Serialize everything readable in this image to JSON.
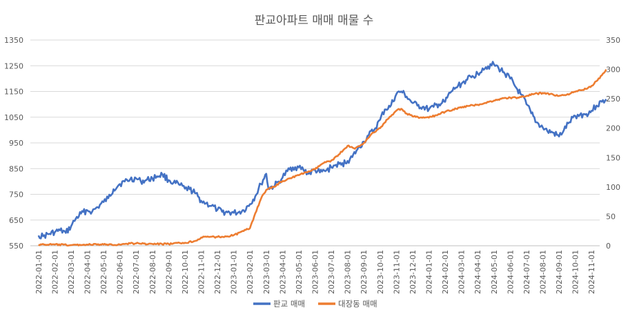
{
  "chart_data": {
    "type": "line",
    "title": "판교아파트 매매 매물 수",
    "xlabel": "",
    "ylabel": "",
    "grid": true,
    "legend_position": "bottom",
    "x_categories": [
      "2022-01-01",
      "2022-02-01",
      "2022-03-01",
      "2022-04-01",
      "2022-05-01",
      "2022-06-01",
      "2022-07-01",
      "2022-08-01",
      "2022-09-01",
      "2022-10-01",
      "2022-11-01",
      "2022-12-01",
      "2023-01-01",
      "2023-02-01",
      "2023-03-01",
      "2023-04-01",
      "2023-05-01",
      "2023-06-01",
      "2023-07-01",
      "2023-08-01",
      "2023-09-01",
      "2023-10-01",
      "2023-11-01",
      "2023-12-01",
      "2024-01-01",
      "2024-02-01",
      "2024-03-01",
      "2024-04-01",
      "2024-05-01",
      "2024-06-01",
      "2024-07-01",
      "2024-08-01",
      "2024-09-01",
      "2024-10-01",
      "2024-11-01"
    ],
    "y_left": {
      "min": 550,
      "max": 1350,
      "ticks": [
        "550",
        "650",
        "750",
        "850",
        "950",
        "1050",
        "1150",
        "1250",
        "1350"
      ]
    },
    "y_right": {
      "min": 0,
      "max": 350,
      "ticks": [
        "0",
        "50",
        "100",
        "150",
        "200",
        "250",
        "300",
        "350"
      ]
    },
    "series": [
      {
        "name": "판교 매매",
        "axis": "left",
        "color": "#4472C4",
        "points": [
          [
            "2022-01-01",
            590
          ],
          [
            "2022-01-10",
            587
          ],
          [
            "2022-01-20",
            595
          ],
          [
            "2022-02-01",
            603
          ],
          [
            "2022-02-10",
            610
          ],
          [
            "2022-02-20",
            600
          ],
          [
            "2022-03-01",
            625
          ],
          [
            "2022-03-10",
            655
          ],
          [
            "2022-03-20",
            675
          ],
          [
            "2022-04-01",
            688
          ],
          [
            "2022-04-10",
            683
          ],
          [
            "2022-04-20",
            700
          ],
          [
            "2022-05-01",
            720
          ],
          [
            "2022-05-10",
            735
          ],
          [
            "2022-05-20",
            770
          ],
          [
            "2022-06-01",
            790
          ],
          [
            "2022-06-10",
            800
          ],
          [
            "2022-06-20",
            808
          ],
          [
            "2022-07-01",
            812
          ],
          [
            "2022-07-10",
            800
          ],
          [
            "2022-07-20",
            805
          ],
          [
            "2022-08-01",
            812
          ],
          [
            "2022-08-10",
            820
          ],
          [
            "2022-08-20",
            828
          ],
          [
            "2022-09-01",
            805
          ],
          [
            "2022-09-10",
            795
          ],
          [
            "2022-09-20",
            788
          ],
          [
            "2022-10-01",
            772
          ],
          [
            "2022-10-10",
            770
          ],
          [
            "2022-10-20",
            755
          ],
          [
            "2022-11-01",
            725
          ],
          [
            "2022-11-10",
            715
          ],
          [
            "2022-11-20",
            705
          ],
          [
            "2022-12-01",
            690
          ],
          [
            "2022-12-10",
            682
          ],
          [
            "2022-12-20",
            680
          ],
          [
            "2023-01-01",
            678
          ],
          [
            "2023-01-10",
            680
          ],
          [
            "2023-01-20",
            688
          ],
          [
            "2023-02-01",
            712
          ],
          [
            "2023-02-10",
            742
          ],
          [
            "2023-02-20",
            790
          ],
          [
            "2023-03-01",
            830
          ],
          [
            "2023-03-05",
            775
          ],
          [
            "2023-03-15",
            780
          ],
          [
            "2023-03-25",
            800
          ],
          [
            "2023-04-01",
            815
          ],
          [
            "2023-04-10",
            840
          ],
          [
            "2023-04-20",
            855
          ],
          [
            "2023-05-01",
            855
          ],
          [
            "2023-05-10",
            845
          ],
          [
            "2023-05-20",
            830
          ],
          [
            "2023-06-01",
            845
          ],
          [
            "2023-06-10",
            835
          ],
          [
            "2023-06-20",
            840
          ],
          [
            "2023-07-01",
            855
          ],
          [
            "2023-07-10",
            865
          ],
          [
            "2023-07-20",
            865
          ],
          [
            "2023-08-01",
            880
          ],
          [
            "2023-08-10",
            895
          ],
          [
            "2023-08-20",
            925
          ],
          [
            "2023-09-01",
            955
          ],
          [
            "2023-09-10",
            980
          ],
          [
            "2023-09-20",
            1000
          ],
          [
            "2023-10-01",
            1040
          ],
          [
            "2023-10-10",
            1080
          ],
          [
            "2023-10-20",
            1090
          ],
          [
            "2023-11-01",
            1140
          ],
          [
            "2023-11-10",
            1150
          ],
          [
            "2023-11-20",
            1130
          ],
          [
            "2023-12-01",
            1105
          ],
          [
            "2023-12-10",
            1095
          ],
          [
            "2023-12-20",
            1090
          ],
          [
            "2024-01-01",
            1080
          ],
          [
            "2024-01-10",
            1090
          ],
          [
            "2024-01-20",
            1100
          ],
          [
            "2024-02-01",
            1110
          ],
          [
            "2024-02-10",
            1145
          ],
          [
            "2024-02-20",
            1165
          ],
          [
            "2024-03-01",
            1180
          ],
          [
            "2024-03-10",
            1195
          ],
          [
            "2024-03-20",
            1205
          ],
          [
            "2024-04-01",
            1220
          ],
          [
            "2024-04-10",
            1240
          ],
          [
            "2024-04-20",
            1248
          ],
          [
            "2024-05-01",
            1255
          ],
          [
            "2024-05-10",
            1240
          ],
          [
            "2024-05-20",
            1225
          ],
          [
            "2024-06-01",
            1200
          ],
          [
            "2024-06-10",
            1170
          ],
          [
            "2024-06-20",
            1140
          ],
          [
            "2024-07-01",
            1100
          ],
          [
            "2024-07-10",
            1065
          ],
          [
            "2024-07-20",
            1030
          ],
          [
            "2024-08-01",
            1010
          ],
          [
            "2024-08-10",
            995
          ],
          [
            "2024-08-20",
            990
          ],
          [
            "2024-09-01",
            975
          ],
          [
            "2024-09-10",
            1000
          ],
          [
            "2024-09-20",
            1030
          ],
          [
            "2024-10-01",
            1055
          ],
          [
            "2024-10-10",
            1060
          ],
          [
            "2024-10-20",
            1060
          ],
          [
            "2024-11-01",
            1075
          ],
          [
            "2024-11-10",
            1095
          ],
          [
            "2024-11-20",
            1110
          ],
          [
            "2024-11-28",
            1120
          ]
        ]
      },
      {
        "name": "대장동 매매",
        "axis": "right",
        "color": "#ED7D31",
        "points": [
          [
            "2022-01-01",
            2
          ],
          [
            "2022-02-01",
            2
          ],
          [
            "2022-03-01",
            1
          ],
          [
            "2022-04-01",
            2
          ],
          [
            "2022-05-01",
            2
          ],
          [
            "2022-06-01",
            2
          ],
          [
            "2022-06-20",
            4
          ],
          [
            "2022-07-01",
            4
          ],
          [
            "2022-08-01",
            3
          ],
          [
            "2022-09-01",
            3
          ],
          [
            "2022-10-01",
            5
          ],
          [
            "2022-10-20",
            8
          ],
          [
            "2022-11-01",
            14
          ],
          [
            "2022-11-15",
            15
          ],
          [
            "2022-12-01",
            15
          ],
          [
            "2022-12-20",
            16
          ],
          [
            "2023-01-01",
            18
          ],
          [
            "2023-01-20",
            25
          ],
          [
            "2023-02-01",
            30
          ],
          [
            "2023-02-10",
            55
          ],
          [
            "2023-02-20",
            80
          ],
          [
            "2023-03-01",
            95
          ],
          [
            "2023-03-15",
            100
          ],
          [
            "2023-04-01",
            110
          ],
          [
            "2023-04-15",
            115
          ],
          [
            "2023-05-01",
            120
          ],
          [
            "2023-05-15",
            125
          ],
          [
            "2023-06-01",
            130
          ],
          [
            "2023-06-15",
            140
          ],
          [
            "2023-07-01",
            145
          ],
          [
            "2023-07-15",
            155
          ],
          [
            "2023-08-01",
            170
          ],
          [
            "2023-08-15",
            165
          ],
          [
            "2023-09-01",
            175
          ],
          [
            "2023-09-15",
            190
          ],
          [
            "2023-10-01",
            200
          ],
          [
            "2023-10-15",
            215
          ],
          [
            "2023-11-01",
            230
          ],
          [
            "2023-11-10",
            233
          ],
          [
            "2023-11-20",
            225
          ],
          [
            "2023-12-01",
            220
          ],
          [
            "2023-12-15",
            218
          ],
          [
            "2024-01-01",
            218
          ],
          [
            "2024-01-15",
            222
          ],
          [
            "2024-02-01",
            228
          ],
          [
            "2024-02-15",
            232
          ],
          [
            "2024-03-01",
            235
          ],
          [
            "2024-03-15",
            238
          ],
          [
            "2024-04-01",
            240
          ],
          [
            "2024-04-15",
            243
          ],
          [
            "2024-05-01",
            247
          ],
          [
            "2024-05-15",
            250
          ],
          [
            "2024-06-01",
            252
          ],
          [
            "2024-06-15",
            252
          ],
          [
            "2024-07-01",
            255
          ],
          [
            "2024-07-15",
            258
          ],
          [
            "2024-08-01",
            260
          ],
          [
            "2024-08-15",
            258
          ],
          [
            "2024-09-01",
            255
          ],
          [
            "2024-09-15",
            257
          ],
          [
            "2024-10-01",
            262
          ],
          [
            "2024-10-15",
            265
          ],
          [
            "2024-11-01",
            272
          ],
          [
            "2024-11-10",
            280
          ],
          [
            "2024-11-20",
            290
          ],
          [
            "2024-11-28",
            300
          ]
        ]
      }
    ]
  }
}
